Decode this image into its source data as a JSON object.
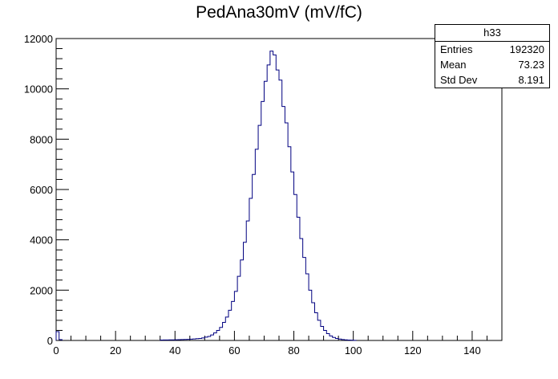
{
  "title": "PedAna30mV (mV/fC)",
  "stats": {
    "name": "h33",
    "rows": [
      {
        "label": "Entries",
        "value": "192320"
      },
      {
        "label": "Mean",
        "value": "73.23"
      },
      {
        "label": "Std Dev",
        "value": "8.191"
      }
    ]
  },
  "colors": {
    "line": "#000080",
    "axes": "#000000"
  },
  "chart_data": {
    "type": "histogram",
    "title": "PedAna30mV (mV/fC)",
    "xlabel": "",
    "ylabel": "",
    "xlim": [
      0,
      150
    ],
    "ylim": [
      0,
      12000
    ],
    "bin_width": 1,
    "x_ticks": [
      0,
      20,
      40,
      60,
      80,
      100,
      120,
      140
    ],
    "y_ticks": [
      0,
      2000,
      4000,
      6000,
      8000,
      10000,
      12000
    ],
    "grid": false,
    "bins": [
      {
        "x": 0,
        "y": 350
      },
      {
        "x": 1,
        "y": 30
      },
      {
        "x": 35,
        "y": 15
      },
      {
        "x": 36,
        "y": 18
      },
      {
        "x": 37,
        "y": 20
      },
      {
        "x": 38,
        "y": 22
      },
      {
        "x": 39,
        "y": 25
      },
      {
        "x": 40,
        "y": 28
      },
      {
        "x": 41,
        "y": 30
      },
      {
        "x": 42,
        "y": 35
      },
      {
        "x": 43,
        "y": 40
      },
      {
        "x": 44,
        "y": 45
      },
      {
        "x": 45,
        "y": 50
      },
      {
        "x": 46,
        "y": 60
      },
      {
        "x": 47,
        "y": 70
      },
      {
        "x": 48,
        "y": 80
      },
      {
        "x": 49,
        "y": 100
      },
      {
        "x": 50,
        "y": 130
      },
      {
        "x": 51,
        "y": 160
      },
      {
        "x": 52,
        "y": 220
      },
      {
        "x": 53,
        "y": 300
      },
      {
        "x": 54,
        "y": 400
      },
      {
        "x": 55,
        "y": 520
      },
      {
        "x": 56,
        "y": 720
      },
      {
        "x": 57,
        "y": 930
      },
      {
        "x": 58,
        "y": 1200
      },
      {
        "x": 59,
        "y": 1550
      },
      {
        "x": 60,
        "y": 1950
      },
      {
        "x": 61,
        "y": 2550
      },
      {
        "x": 62,
        "y": 3200
      },
      {
        "x": 63,
        "y": 3900
      },
      {
        "x": 64,
        "y": 4750
      },
      {
        "x": 65,
        "y": 5650
      },
      {
        "x": 66,
        "y": 6600
      },
      {
        "x": 67,
        "y": 7600
      },
      {
        "x": 68,
        "y": 8550
      },
      {
        "x": 69,
        "y": 9500
      },
      {
        "x": 70,
        "y": 10300
      },
      {
        "x": 71,
        "y": 10950
      },
      {
        "x": 72,
        "y": 11500
      },
      {
        "x": 73,
        "y": 11350
      },
      {
        "x": 74,
        "y": 10750
      },
      {
        "x": 75,
        "y": 10350
      },
      {
        "x": 76,
        "y": 9300
      },
      {
        "x": 77,
        "y": 8650
      },
      {
        "x": 78,
        "y": 7700
      },
      {
        "x": 79,
        "y": 6700
      },
      {
        "x": 80,
        "y": 5800
      },
      {
        "x": 81,
        "y": 4900
      },
      {
        "x": 82,
        "y": 4050
      },
      {
        "x": 83,
        "y": 3300
      },
      {
        "x": 84,
        "y": 2650
      },
      {
        "x": 85,
        "y": 2000
      },
      {
        "x": 86,
        "y": 1500
      },
      {
        "x": 87,
        "y": 1100
      },
      {
        "x": 88,
        "y": 800
      },
      {
        "x": 89,
        "y": 560
      },
      {
        "x": 90,
        "y": 400
      },
      {
        "x": 91,
        "y": 270
      },
      {
        "x": 92,
        "y": 180
      },
      {
        "x": 93,
        "y": 120
      },
      {
        "x": 94,
        "y": 80
      },
      {
        "x": 95,
        "y": 55
      },
      {
        "x": 96,
        "y": 35
      },
      {
        "x": 97,
        "y": 25
      },
      {
        "x": 98,
        "y": 15
      },
      {
        "x": 99,
        "y": 10
      },
      {
        "x": 100,
        "y": 5
      }
    ]
  }
}
